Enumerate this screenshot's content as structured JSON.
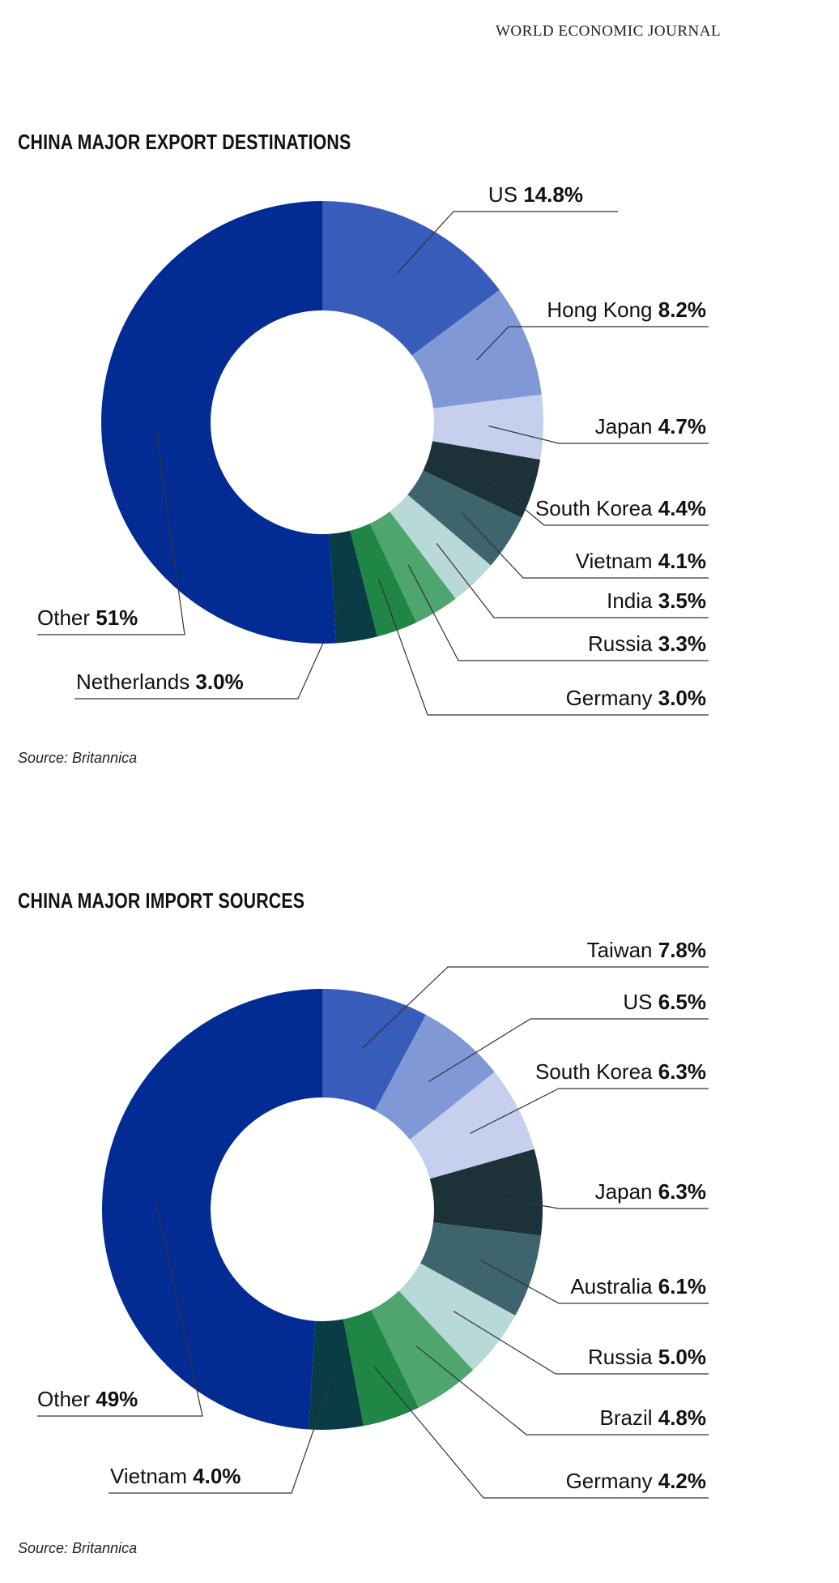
{
  "header": {
    "journal": "WORLD ECONOMIC JOURNAL"
  },
  "chart_data": [
    {
      "type": "pie",
      "title": "CHINA MAJOR EXPORT DESTINATIONS",
      "source": "Source: Britannica",
      "slices": [
        {
          "label": "US",
          "value": 14.8,
          "display": "14.8%",
          "color": "#385cba"
        },
        {
          "label": "Hong Kong",
          "value": 8.2,
          "display": "8.2%",
          "color": "#8099d6"
        },
        {
          "label": "Japan",
          "value": 4.7,
          "display": "4.7%",
          "color": "#c6d0ee"
        },
        {
          "label": "South Korea",
          "value": 4.4,
          "display": "4.4%",
          "color": "#1d3138"
        },
        {
          "label": "Vietnam",
          "value": 4.1,
          "display": "4.1%",
          "color": "#3e646e"
        },
        {
          "label": "India",
          "value": 3.5,
          "display": "3.5%",
          "color": "#b9d8d8"
        },
        {
          "label": "Russia",
          "value": 3.3,
          "display": "3.3%",
          "color": "#4ea56e"
        },
        {
          "label": "Germany",
          "value": 3.0,
          "display": "3.0%",
          "color": "#1f8645"
        },
        {
          "label": "Netherlands",
          "value": 3.0,
          "display": "3.0%",
          "color": "#0a3c46"
        },
        {
          "label": "Other",
          "value": 51,
          "display": "51%",
          "color": "#022b93"
        }
      ]
    },
    {
      "type": "pie",
      "title": "CHINA MAJOR IMPORT SOURCES",
      "source": "Source: Britannica",
      "slices": [
        {
          "label": "Taiwan",
          "value": 7.8,
          "display": "7.8%",
          "color": "#385cba"
        },
        {
          "label": "US",
          "value": 6.5,
          "display": "6.5%",
          "color": "#8099d6"
        },
        {
          "label": "South Korea",
          "value": 6.3,
          "display": "6.3%",
          "color": "#c6d0ee"
        },
        {
          "label": "Japan",
          "value": 6.3,
          "display": "6.3%",
          "color": "#1d3138"
        },
        {
          "label": "Australia",
          "value": 6.1,
          "display": "6.1%",
          "color": "#3e646e"
        },
        {
          "label": "Russia",
          "value": 5.0,
          "display": "5.0%",
          "color": "#b9d8d8"
        },
        {
          "label": "Brazil",
          "value": 4.8,
          "display": "4.8%",
          "color": "#4ea56e"
        },
        {
          "label": "Germany",
          "value": 4.2,
          "display": "4.2%",
          "color": "#1f8645"
        },
        {
          "label": "Vietnam",
          "value": 4.0,
          "display": "4.0%",
          "color": "#0a3c46"
        },
        {
          "label": "Other",
          "value": 49,
          "display": "49%",
          "color": "#022b93"
        }
      ]
    }
  ]
}
